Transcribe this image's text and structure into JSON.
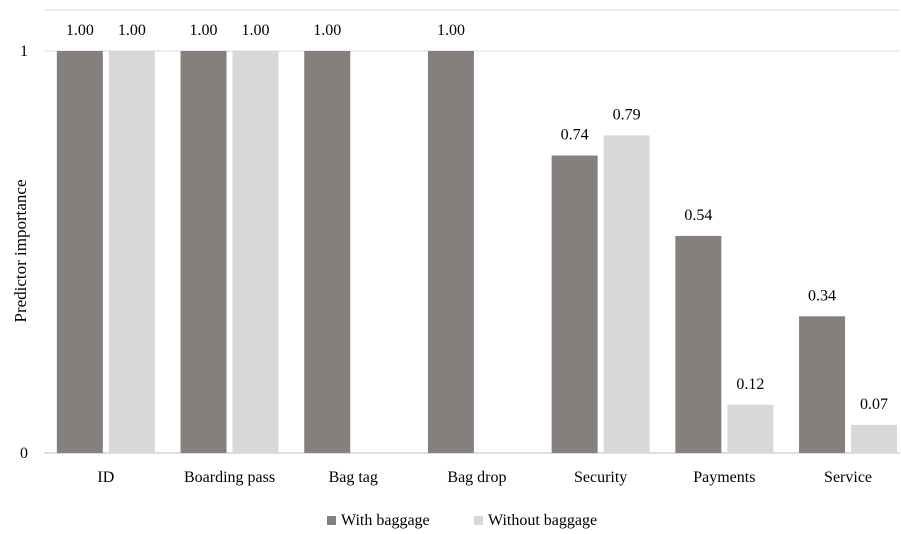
{
  "chart_data": {
    "type": "bar",
    "title": "",
    "xlabel": "",
    "ylabel": "Predictor importance",
    "ylim": [
      0,
      1
    ],
    "yticks": [
      0,
      1
    ],
    "ytick_labels": [
      "0",
      "1"
    ],
    "grid": true,
    "legend_position": "bottom",
    "categories": [
      "ID",
      "Boarding pass",
      "Bag tag",
      "Bag drop",
      "Security",
      "Payments",
      "Service"
    ],
    "series": [
      {
        "name": "With baggage",
        "color": "#857f7e",
        "values": [
          1.0,
          1.0,
          1.0,
          1.0,
          0.74,
          0.54,
          0.34
        ],
        "labels": [
          "1.00",
          "1.00",
          "1.00",
          "1.00",
          "0.74",
          "0.54",
          "0.34"
        ]
      },
      {
        "name": "Without baggage",
        "color": "#d8d8d8",
        "values": [
          1.0,
          1.0,
          null,
          null,
          0.79,
          0.12,
          0.07
        ],
        "labels": [
          "1.00",
          "1.00",
          null,
          null,
          "0.79",
          "0.12",
          "0.07"
        ]
      }
    ]
  }
}
